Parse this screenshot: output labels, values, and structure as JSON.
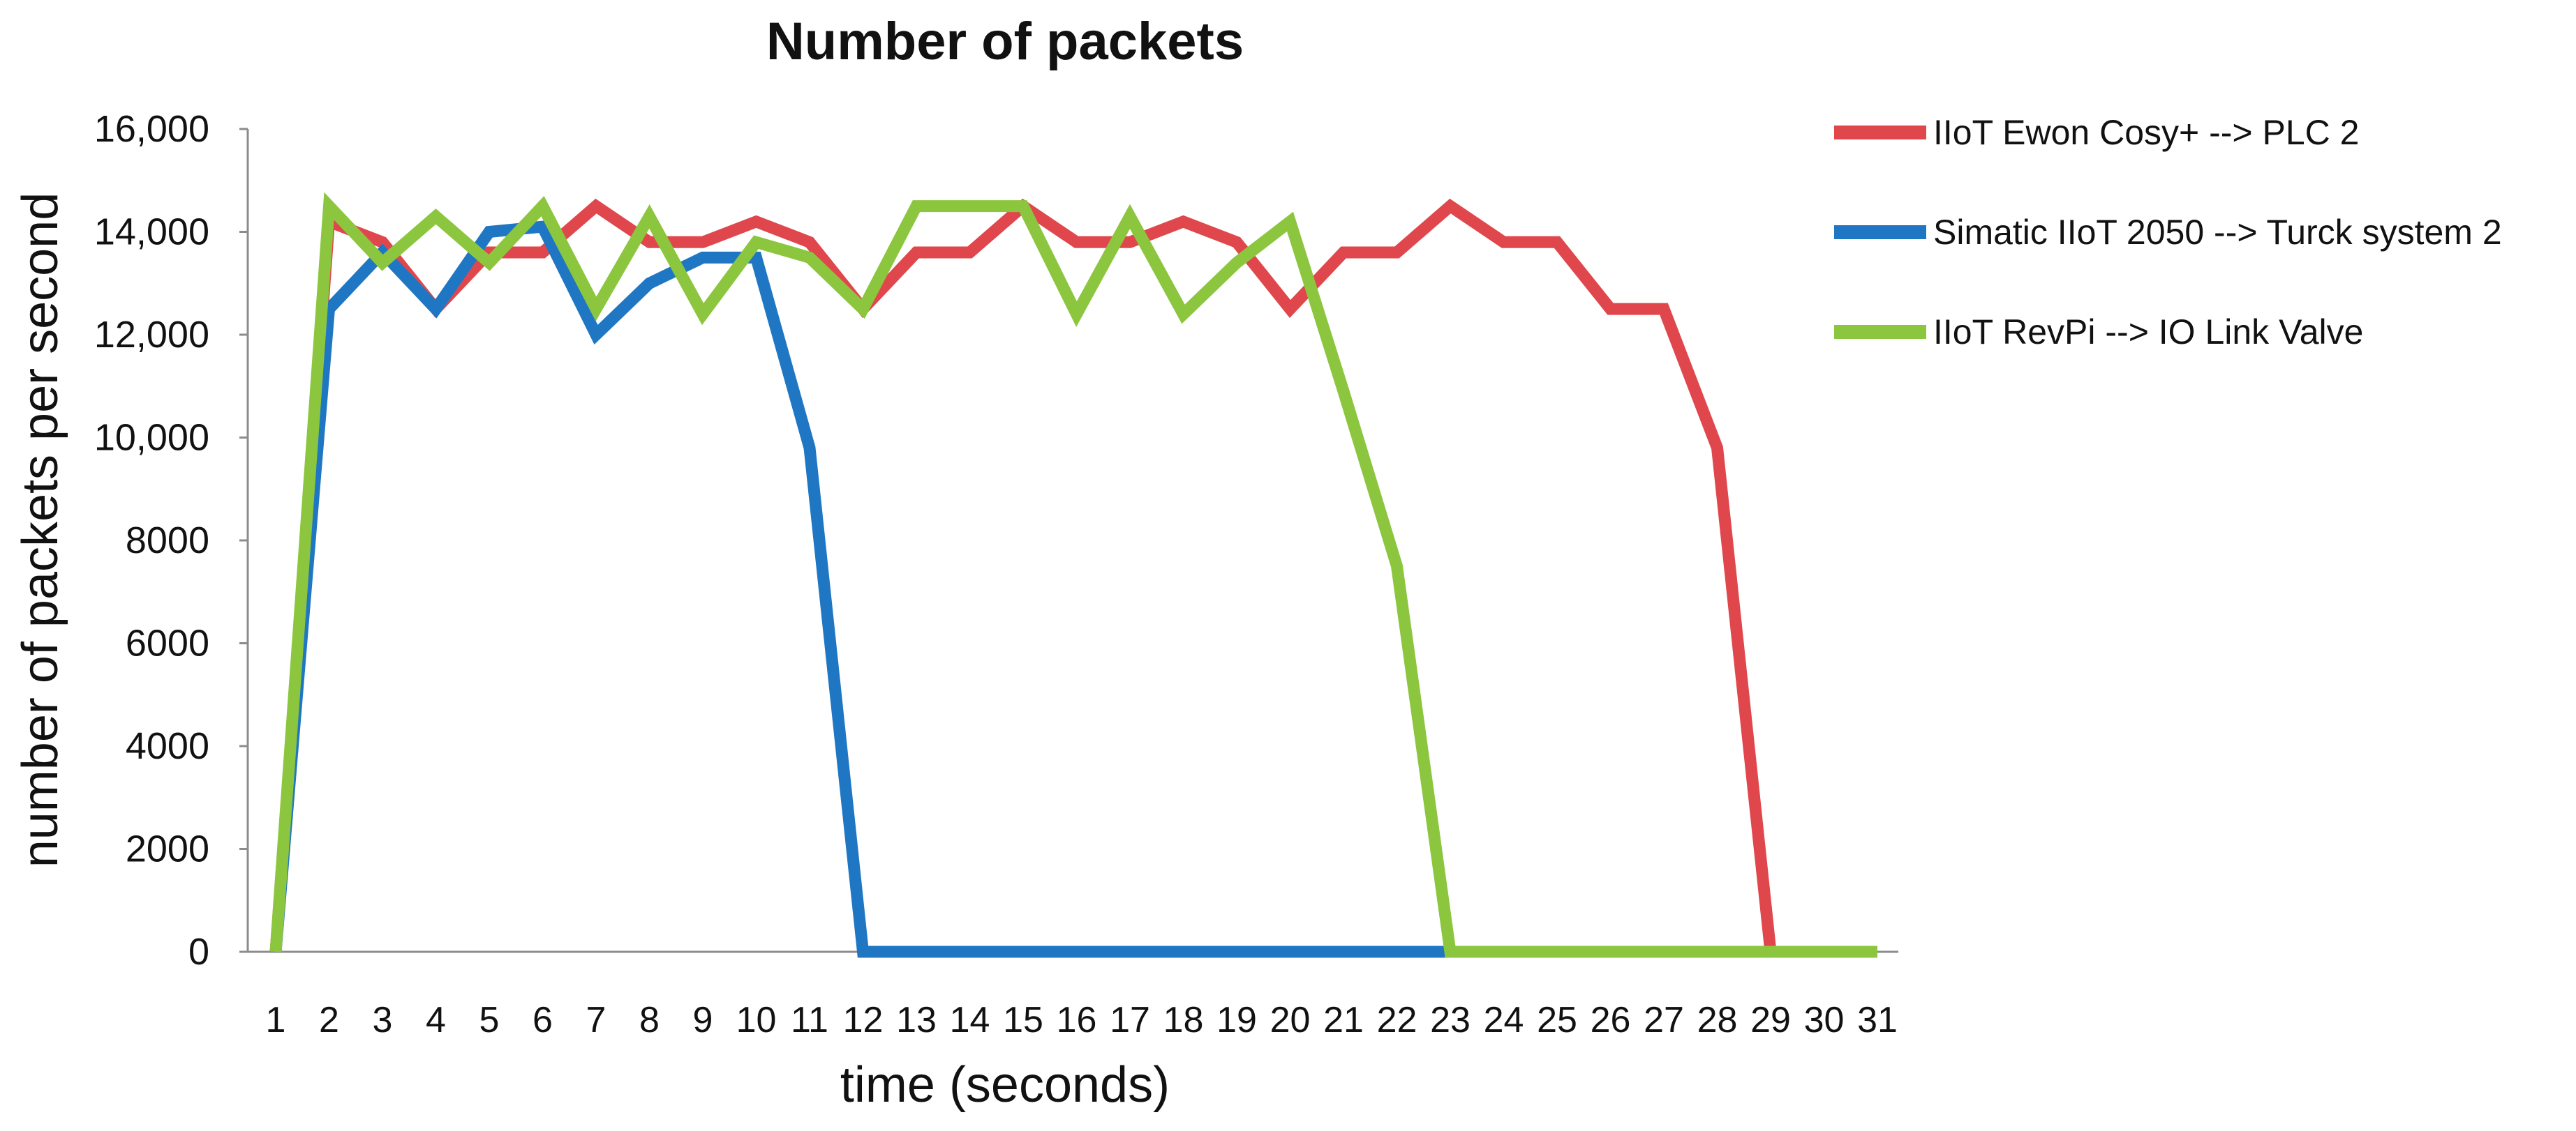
{
  "chart_data": {
    "type": "line",
    "title": "Number of packets",
    "xlabel": "time (seconds)",
    "ylabel": "number of packets  per second",
    "x": [
      1,
      2,
      3,
      4,
      5,
      6,
      7,
      8,
      9,
      10,
      11,
      12,
      13,
      14,
      15,
      16,
      17,
      18,
      19,
      20,
      21,
      22,
      23,
      24,
      25,
      26,
      27,
      28,
      29,
      30,
      31
    ],
    "ylim": [
      0,
      16000
    ],
    "yticks": [
      0,
      2000,
      4000,
      6000,
      8000,
      10000,
      12000,
      14000,
      16000
    ],
    "ytick_labels": [
      "0",
      "2000",
      "4000",
      "6000",
      "8000",
      "10,000",
      "12,000",
      "14,000",
      "16,000"
    ],
    "grid": false,
    "legend_position": "top-right",
    "series": [
      {
        "name": "IIoT Ewon Cosy+ --> PLC 2",
        "color": "#e0474c",
        "values": [
          0,
          14200,
          13800,
          12500,
          13600,
          13600,
          14500,
          13800,
          13800,
          14200,
          13800,
          12500,
          13600,
          13600,
          14500,
          13800,
          13800,
          14200,
          13800,
          12500,
          13600,
          13600,
          14500,
          13800,
          13800,
          12500,
          12500,
          9800,
          0,
          0,
          0
        ]
      },
      {
        "name": "Simatic IIoT 2050 --> Turck system 2",
        "color": "#1f77c4",
        "values": [
          0,
          12500,
          13600,
          12500,
          14000,
          14100,
          12000,
          13000,
          13500,
          13500,
          9800,
          0,
          0,
          0,
          0,
          0,
          0,
          0,
          0,
          0,
          0,
          0,
          0,
          null,
          null,
          null,
          null,
          null,
          null,
          null,
          null
        ]
      },
      {
        "name": "IIoT RevPi --> IO Link Valve",
        "color": "#8cc63f",
        "values": [
          0,
          14500,
          13400,
          14300,
          13400,
          14500,
          12500,
          14300,
          12400,
          13800,
          13500,
          12500,
          14500,
          14500,
          14500,
          12400,
          14300,
          12400,
          13400,
          14200,
          10900,
          7500,
          0,
          0,
          0,
          0,
          0,
          0,
          0,
          0,
          0
        ]
      }
    ]
  }
}
